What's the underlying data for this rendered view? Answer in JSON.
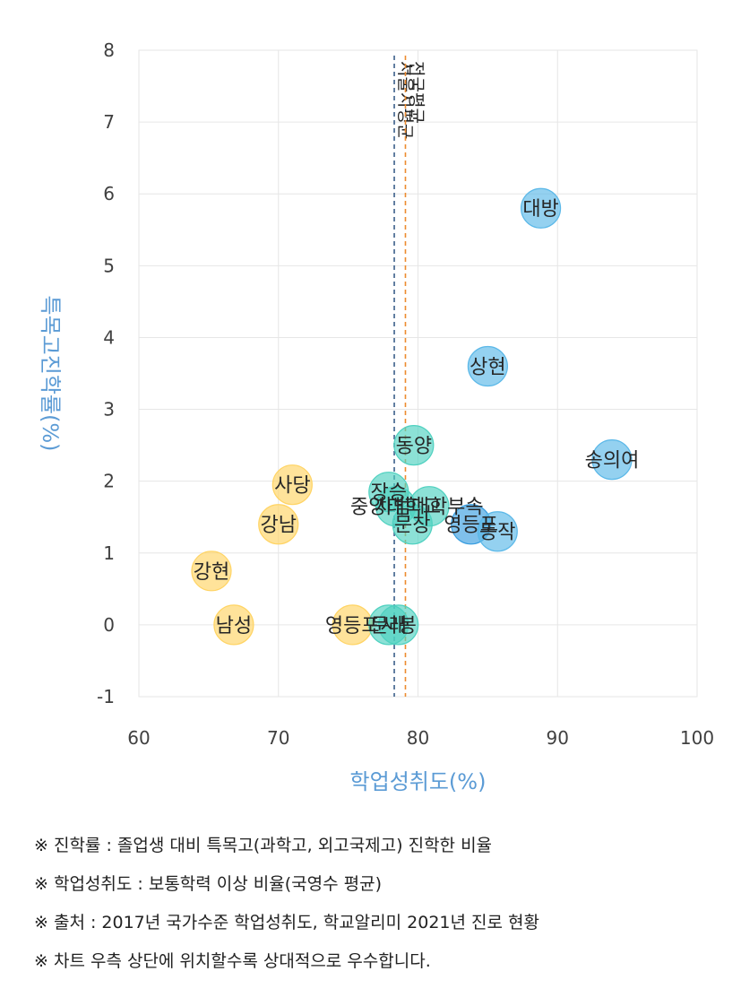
{
  "chart_data": {
    "type": "scatter",
    "title": "",
    "xlabel": "학업성취도(%)",
    "ylabel": "특목고진학률(%)",
    "xlim": [
      60,
      100
    ],
    "ylim": [
      -1,
      8
    ],
    "xticks": [
      60,
      70,
      80,
      90,
      100
    ],
    "yticks": [
      -1,
      0,
      1,
      2,
      3,
      4,
      5,
      6,
      7,
      8
    ],
    "grid": true,
    "legend": "none",
    "colors": {
      "blue": "#5bb8e8",
      "teal": "#4fd1c0",
      "yellow": "#ffd464",
      "deep_blue": "#3a9ee0",
      "ref_line_1": "#3c5f8a",
      "ref_line_2": "#ed8b2f",
      "axis_title": "#5b9bd5"
    },
    "points": [
      {
        "label": "대방",
        "x": 88.8,
        "y": 5.8,
        "color": "blue"
      },
      {
        "label": "상현",
        "x": 85.0,
        "y": 3.6,
        "color": "blue"
      },
      {
        "label": "송의여",
        "x": 93.9,
        "y": 2.3,
        "color": "blue"
      },
      {
        "label": "동양",
        "x": 79.7,
        "y": 2.5,
        "color": "teal"
      },
      {
        "label": "장승",
        "x": 77.9,
        "y": 1.85,
        "color": "teal"
      },
      {
        "label": "사범대학부속",
        "x": 80.8,
        "y": 1.65,
        "color": "teal"
      },
      {
        "label": "문창",
        "x": 79.6,
        "y": 1.4,
        "color": "teal"
      },
      {
        "label": "영등포",
        "x": 83.8,
        "y": 1.4,
        "color": "deep_blue"
      },
      {
        "label": "동작",
        "x": 85.7,
        "y": 1.3,
        "color": "blue"
      },
      {
        "label": "중앙대학교",
        "x": 78.4,
        "y": 1.65,
        "color": "teal"
      },
      {
        "label": "사당",
        "x": 71.0,
        "y": 1.95,
        "color": "yellow"
      },
      {
        "label": "강남",
        "x": 70.0,
        "y": 1.4,
        "color": "yellow"
      },
      {
        "label": "강현",
        "x": 65.2,
        "y": 0.75,
        "color": "yellow"
      },
      {
        "label": "남성",
        "x": 66.8,
        "y": 0.0,
        "color": "yellow"
      },
      {
        "label": "영등포",
        "x": 75.3,
        "y": 0.0,
        "color": "yellow"
      },
      {
        "label": "문래",
        "x": 77.9,
        "y": 0.0,
        "color": "teal"
      },
      {
        "label": "사봉",
        "x": 78.6,
        "y": 0.0,
        "color": "teal"
      }
    ],
    "reference_lines": [
      {
        "label": "서울시평균",
        "x": 78.3,
        "color": "ref_line_1"
      },
      {
        "label": "전국평균",
        "x": 79.1,
        "color": "ref_line_2"
      }
    ]
  },
  "notes": [
    "※ 진학률 : 졸업생 대비 특목고(과학고, 외고국제고) 진학한 비율",
    "※ 학업성취도 : 보통학력 이상 비율(국영수 평균)",
    "※ 출처 : 2017년 국가수준 학업성취도, 학교알리미 2021년 진로 현황",
    "※ 차트 우측 상단에 위치할수록 상대적으로 우수합니다."
  ]
}
